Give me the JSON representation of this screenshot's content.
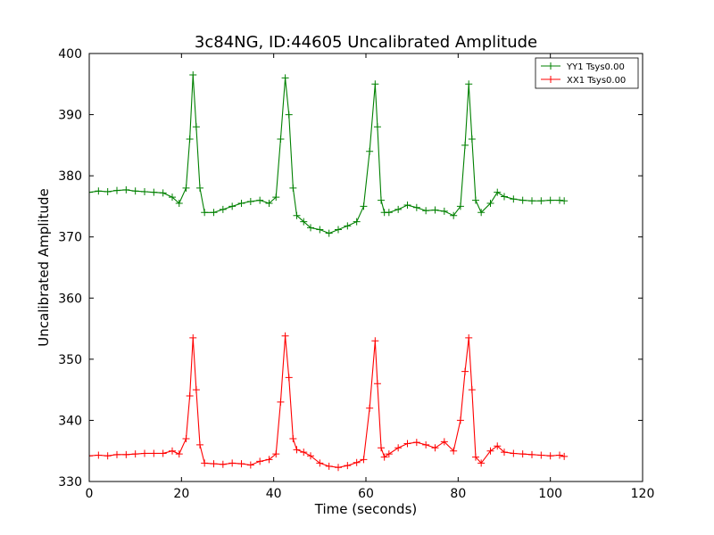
{
  "chart_data": {
    "type": "line",
    "title": "3c84NG, ID:44605 Uncalibrated Amplitude",
    "xlabel": "Time (seconds)",
    "ylabel": "Uncalibrated Amplitude",
    "xlim": [
      0,
      120
    ],
    "ylim": [
      330,
      400
    ],
    "xticks": [
      0,
      20,
      40,
      60,
      80,
      100,
      120
    ],
    "yticks": [
      330,
      340,
      350,
      360,
      370,
      380,
      390,
      400
    ],
    "grid": false,
    "legend_position": "top-right",
    "marker": "+",
    "series": [
      {
        "name": "YY1 Tsys0.00",
        "color": "#008000",
        "x": [
          0,
          2,
          4,
          6,
          8,
          10,
          12,
          14,
          16,
          18,
          19.5,
          21,
          21.8,
          22.5,
          23.2,
          24,
          25,
          27,
          29,
          31,
          33,
          35,
          37,
          39,
          40.5,
          41.5,
          42.5,
          43.3,
          44.2,
          45,
          46.5,
          48,
          50,
          52,
          54,
          56,
          58,
          59.5,
          60.8,
          62,
          62.5,
          63.3,
          64,
          65,
          67,
          69,
          71,
          73,
          75,
          77,
          79,
          80.5,
          81.5,
          82.3,
          83,
          83.8,
          85,
          87,
          88.5,
          90,
          92,
          94,
          96,
          98,
          100,
          102,
          103
        ],
        "values": [
          377.3,
          377.5,
          377.4,
          377.6,
          377.7,
          377.5,
          377.4,
          377.3,
          377.2,
          376.5,
          375.5,
          378,
          386,
          396.5,
          388,
          378,
          374,
          374,
          374.5,
          375,
          375.5,
          375.8,
          376,
          375.5,
          376.5,
          386,
          396,
          390,
          378,
          373.5,
          372.5,
          371.5,
          371.2,
          370.6,
          371.2,
          371.8,
          372.5,
          375,
          384,
          395,
          388,
          376,
          374,
          374,
          374.5,
          375.2,
          374.8,
          374.3,
          374.4,
          374.2,
          373.5,
          375,
          385,
          395,
          386,
          376,
          374,
          375.5,
          377.3,
          376.6,
          376.2,
          376,
          375.9,
          375.9,
          376,
          376,
          375.9
        ]
      },
      {
        "name": "XX1 Tsys0.00",
        "color": "#ff0000",
        "x": [
          0,
          2,
          4,
          6,
          8,
          10,
          12,
          14,
          16,
          18,
          19.5,
          21,
          21.8,
          22.5,
          23.2,
          24,
          25,
          27,
          29,
          31,
          33,
          35,
          37,
          39,
          40.5,
          41.5,
          42.5,
          43.3,
          44.2,
          45,
          46.5,
          48,
          50,
          52,
          54,
          56,
          58,
          59.5,
          60.8,
          62,
          62.5,
          63.3,
          64,
          65,
          67,
          69,
          71,
          73,
          75,
          77,
          79,
          80.5,
          81.5,
          82.3,
          83,
          83.8,
          85,
          87,
          88.5,
          90,
          92,
          94,
          96,
          98,
          100,
          102,
          103
        ],
        "values": [
          334.2,
          334.3,
          334.2,
          334.4,
          334.4,
          334.5,
          334.6,
          334.6,
          334.6,
          335,
          334.5,
          337,
          344,
          353.5,
          345,
          336,
          333,
          332.9,
          332.8,
          333,
          332.9,
          332.7,
          333.3,
          333.6,
          334.5,
          343,
          353.8,
          347,
          337,
          335.2,
          334.8,
          334.2,
          333,
          332.5,
          332.3,
          332.6,
          333.1,
          333.6,
          342,
          353,
          346,
          335.5,
          334,
          334.5,
          335.5,
          336.2,
          336.4,
          336,
          335.5,
          336.5,
          335,
          340,
          348,
          353.5,
          345,
          334,
          333,
          335,
          335.8,
          334.8,
          334.6,
          334.5,
          334.4,
          334.3,
          334.2,
          334.3,
          334.1
        ]
      }
    ]
  }
}
